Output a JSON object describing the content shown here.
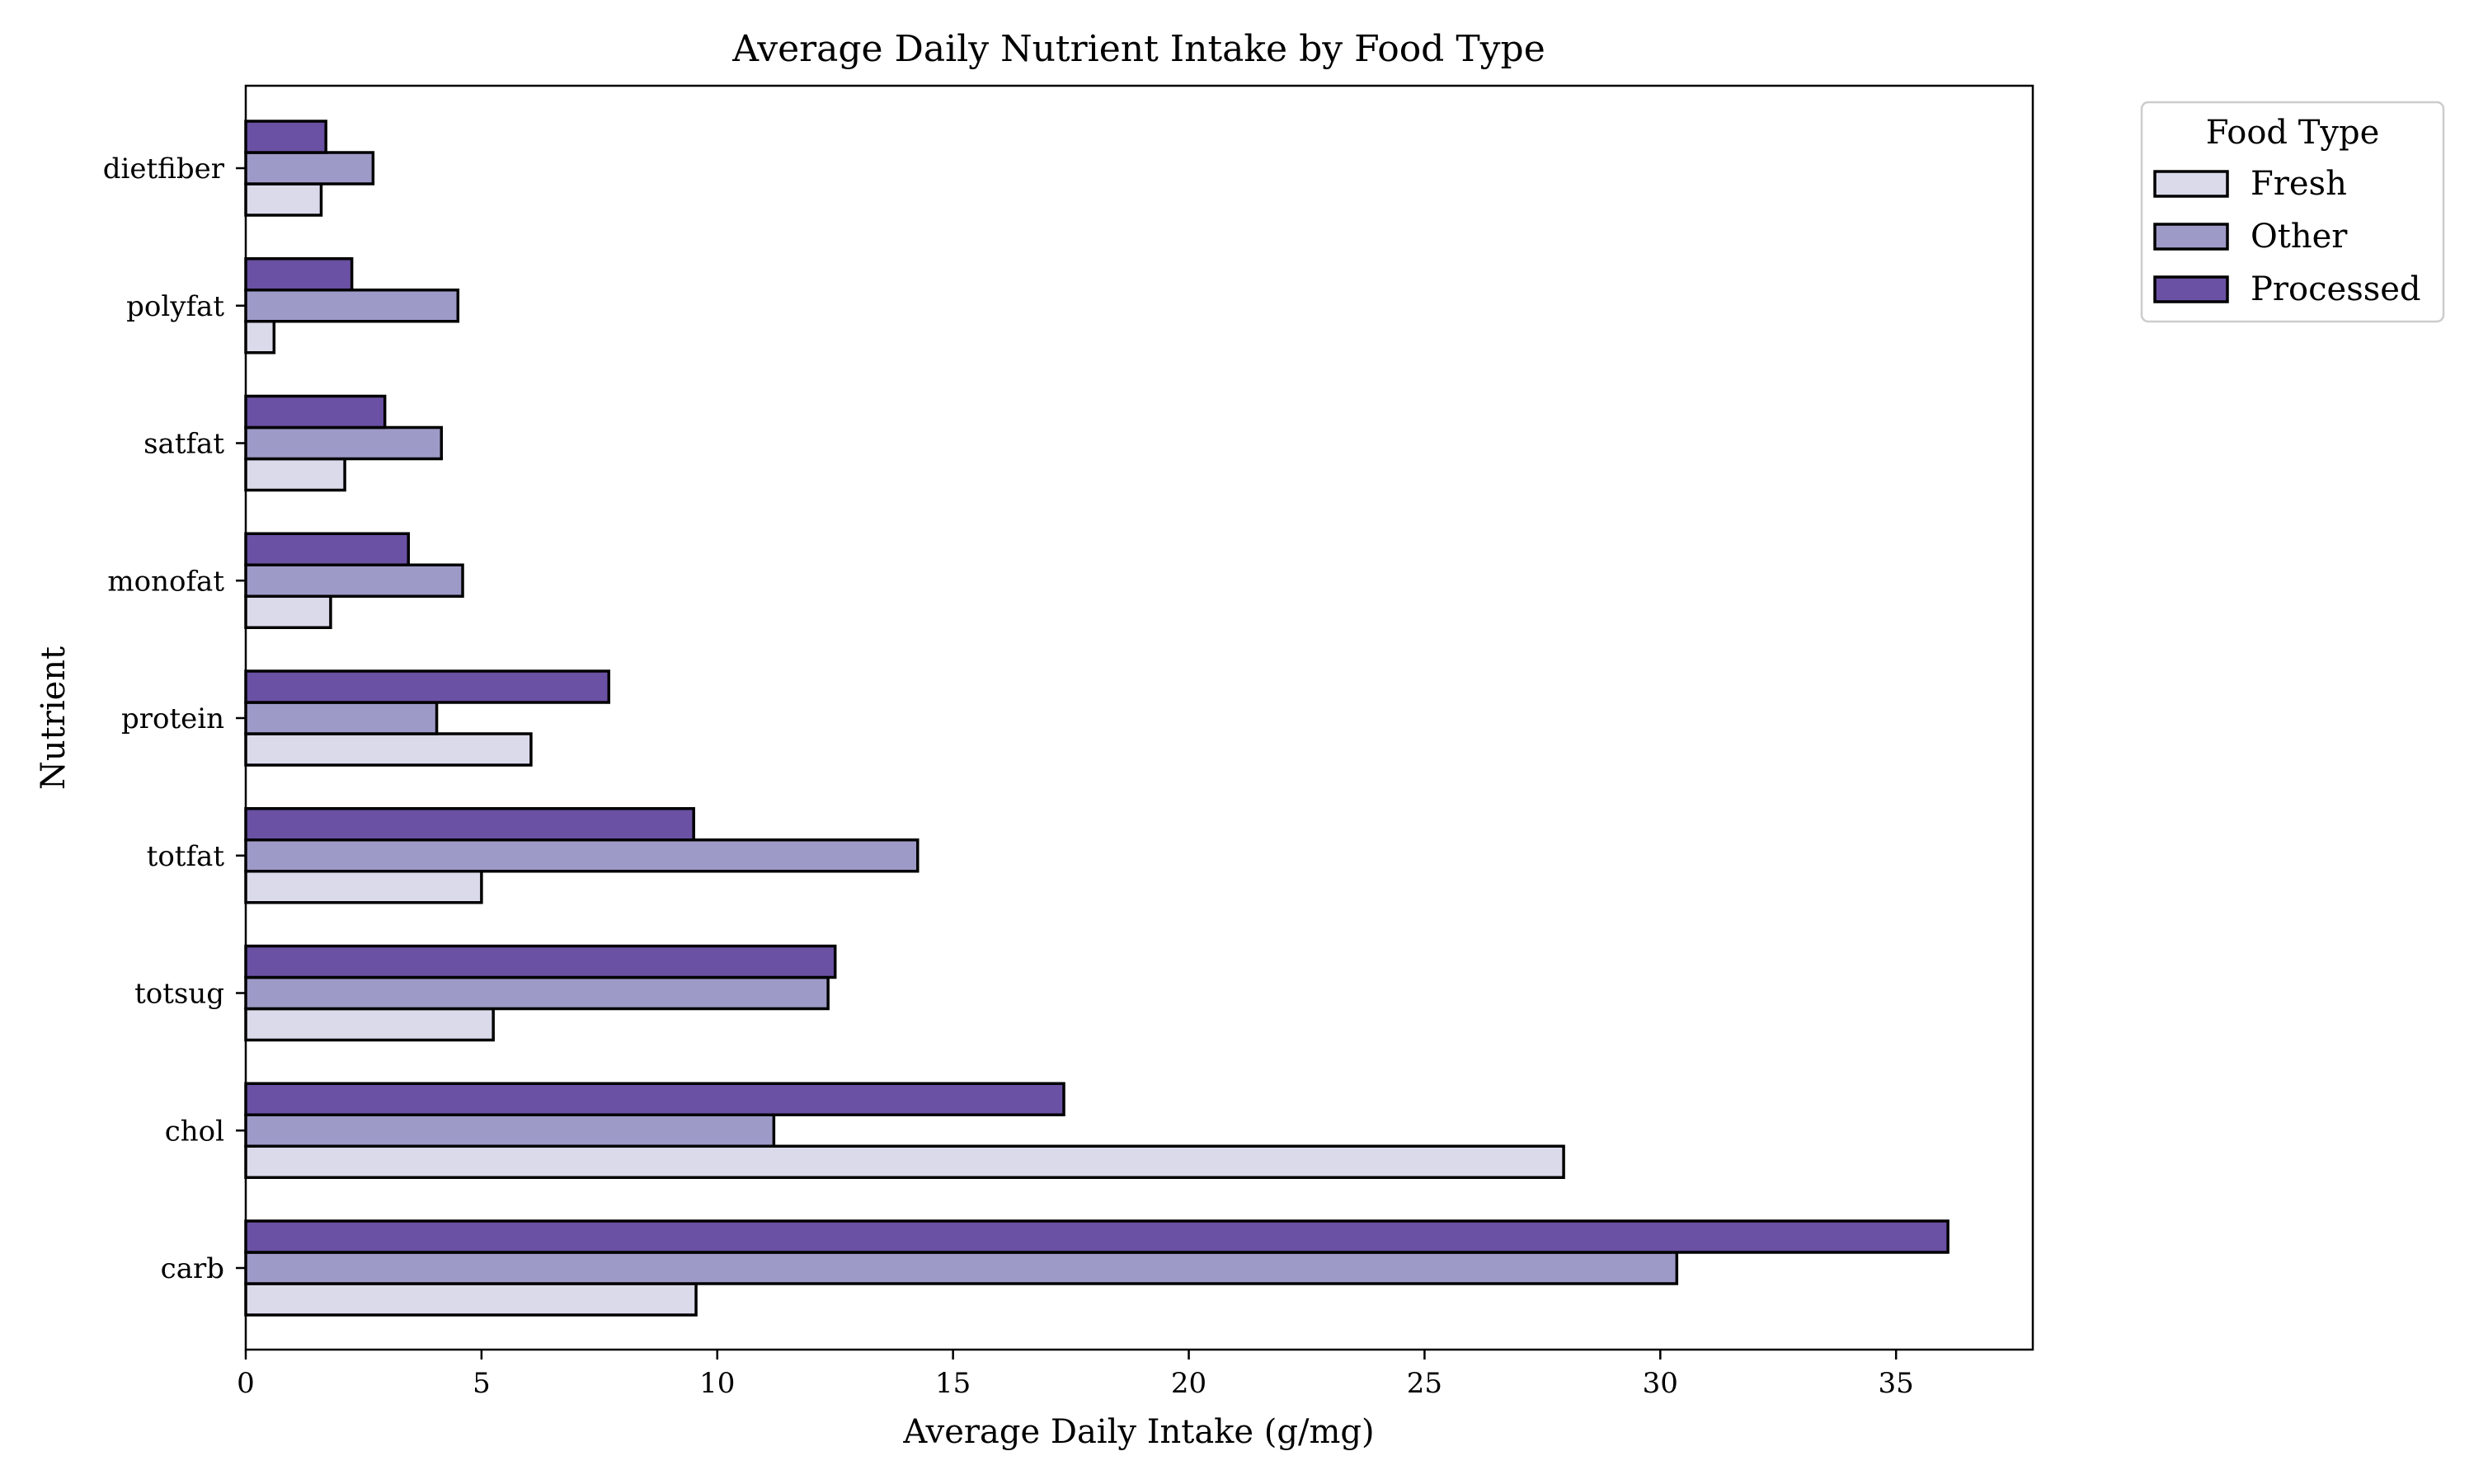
{
  "chart_data": {
    "type": "bar",
    "orientation": "horizontal",
    "title": "Average Daily Nutrient Intake by Food Type",
    "xlabel": "Average Daily Intake (g/mg)",
    "ylabel": "Nutrient",
    "categories": [
      "carb",
      "chol",
      "totsug",
      "totfat",
      "protein",
      "monofat",
      "satfat",
      "polyfat",
      "dietfiber"
    ],
    "series": [
      {
        "name": "Fresh",
        "color": "#dadaeb",
        "values": [
          9.55,
          27.95,
          5.25,
          5.0,
          6.05,
          1.8,
          2.1,
          0.6,
          1.6
        ]
      },
      {
        "name": "Other",
        "color": "#9e9ac8",
        "values": [
          30.35,
          11.2,
          12.35,
          14.25,
          4.05,
          4.6,
          4.15,
          4.5,
          2.7
        ]
      },
      {
        "name": "Processed",
        "color": "#6a51a3",
        "values": [
          36.1,
          17.35,
          12.5,
          9.5,
          7.7,
          3.45,
          2.95,
          2.25,
          1.7
        ]
      }
    ],
    "xlim": [
      0,
      37.9
    ],
    "xticks": [
      0,
      5,
      10,
      15,
      20,
      25,
      30,
      35
    ],
    "grid": false,
    "legend": {
      "title": "Food Type",
      "placement": "outside-top-right"
    }
  }
}
